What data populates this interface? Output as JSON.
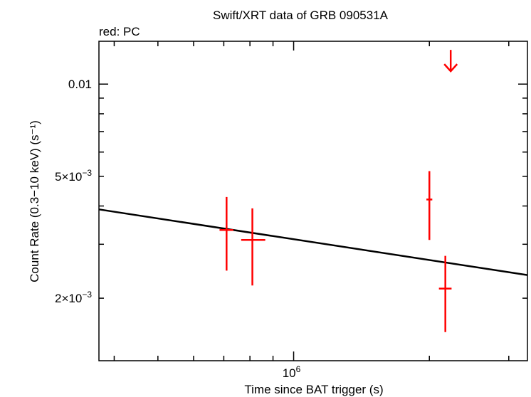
{
  "chart_data": {
    "type": "scatter",
    "title": "Swift/XRT data of GRB 090531A",
    "subtitle": "red: PC",
    "xlabel": "Time since BAT trigger (s)",
    "ylabel": "Count Rate (0.3−10 keV) (s⁻¹)",
    "x_scale": "log",
    "y_scale": "log",
    "xlim": [
      370000,
      3300000
    ],
    "ylim": [
      0.00125,
      0.0138
    ],
    "x_ticks": [
      {
        "value": 1000000,
        "base": "10",
        "exp": "6"
      }
    ],
    "y_ticks": [
      {
        "value": 0.002,
        "mant": "2×10",
        "exp": "−3"
      },
      {
        "value": 0.005,
        "mant": "5×10",
        "exp": "−3"
      },
      {
        "value": 0.01,
        "text": "0.01"
      }
    ],
    "series": [
      {
        "name": "PC",
        "color": "#ff0000",
        "points": [
          {
            "x": 710000,
            "y": 0.00334,
            "xerr": [
              25000,
              25000
            ],
            "yerr": [
              0.00088,
              0.00094
            ]
          },
          {
            "x": 810000,
            "y": 0.0031,
            "xerr": [
              45000,
              55000
            ],
            "yerr": [
              0.0009,
              0.00083
            ]
          },
          {
            "x": 2000000,
            "y": 0.0042,
            "xerr": [
              30000,
              30000
            ],
            "yerr": [
              0.0011,
              0.001
            ]
          },
          {
            "x": 2170000,
            "y": 0.00215,
            "xerr": [
              70000,
              70000
            ],
            "yerr": [
              0.0006,
              0.0006
            ]
          }
        ],
        "upper_limits": [
          {
            "x": 2230000,
            "y": 0.012
          }
        ]
      }
    ],
    "model_line": {
      "name": "power-law fit",
      "color": "#000000",
      "points": [
        {
          "x": 370000,
          "y": 0.0039
        },
        {
          "x": 3300000,
          "y": 0.00238
        }
      ]
    }
  }
}
